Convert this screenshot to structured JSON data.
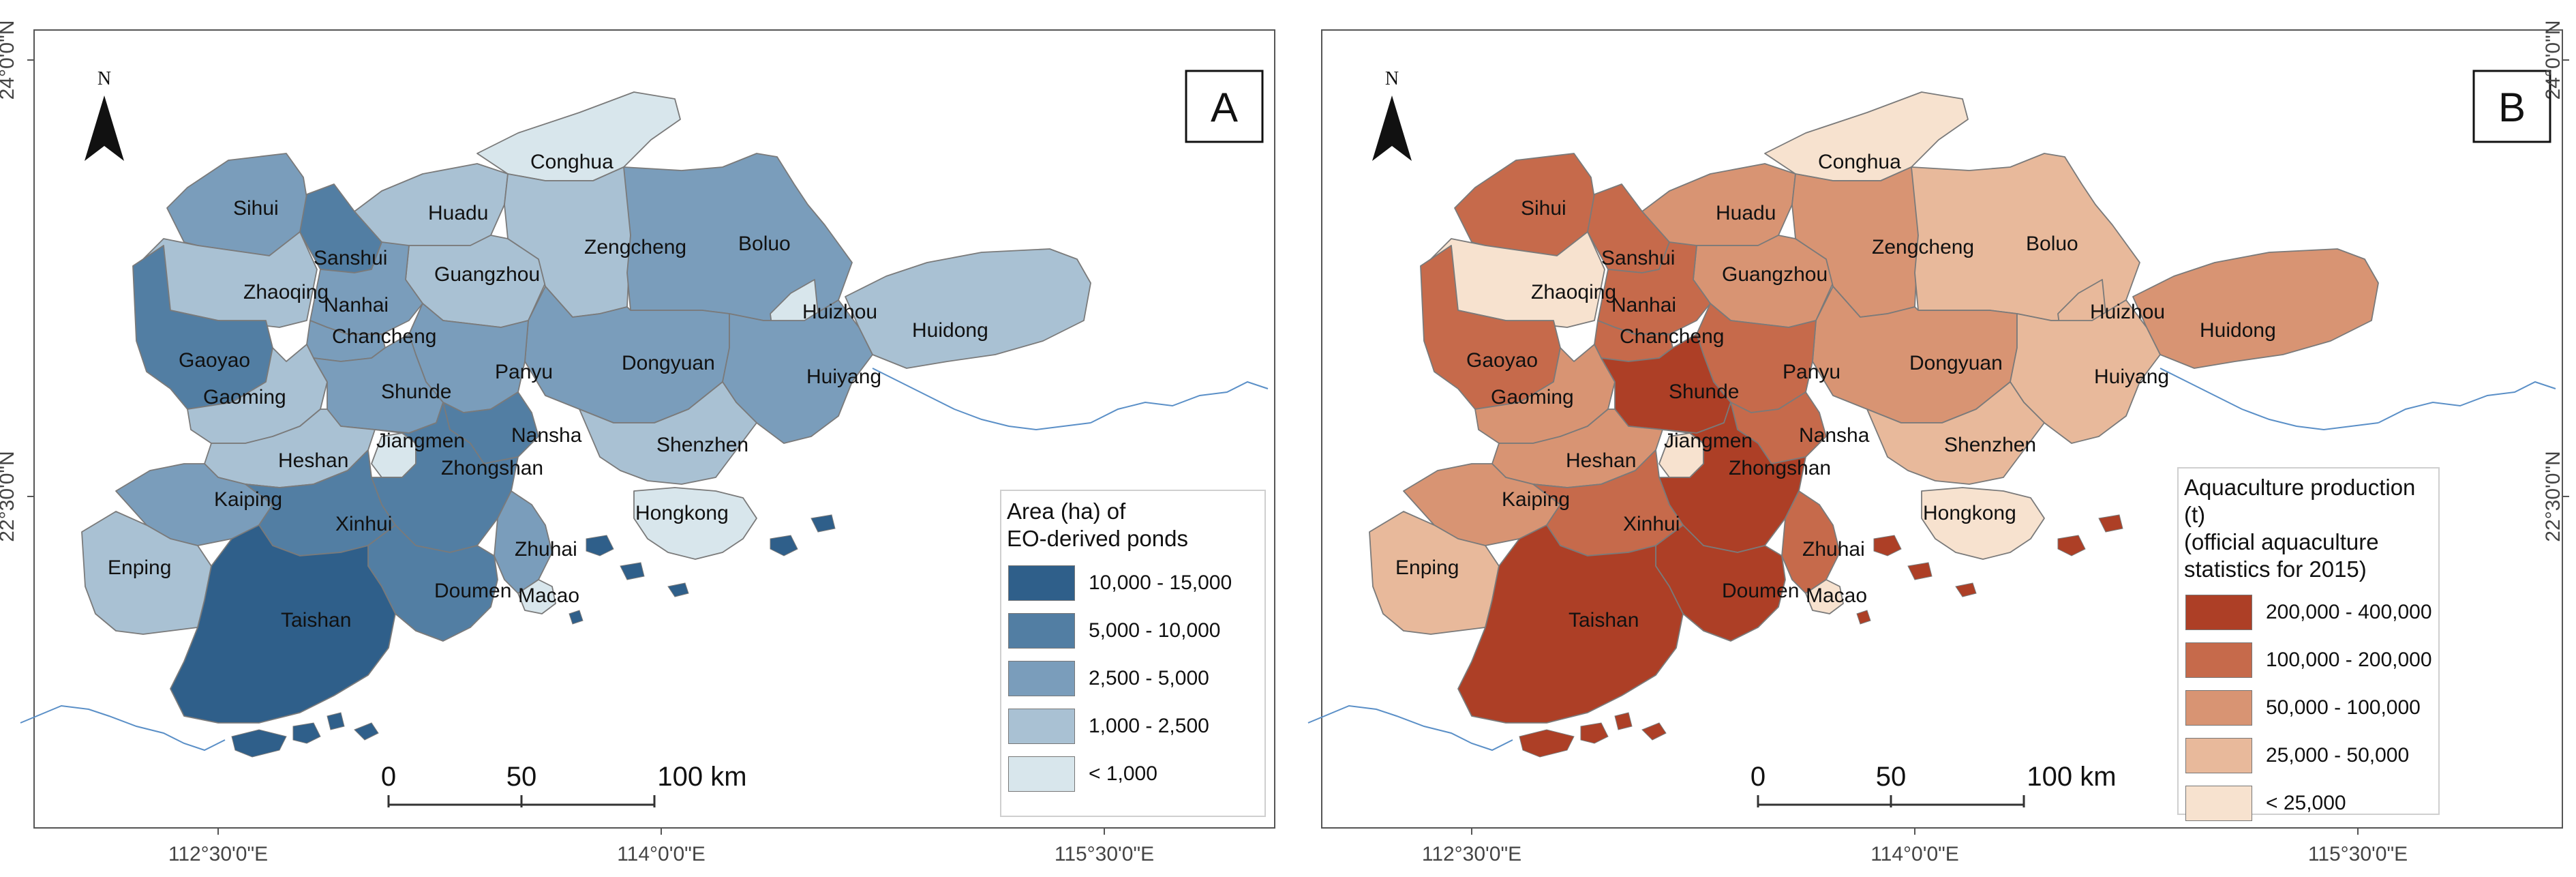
{
  "colors": {
    "blue_scale": [
      "#2f5f8a",
      "#527ea3",
      "#7a9dbb",
      "#a9c1d3",
      "#d8e6ec"
    ],
    "orange_scale": [
      "#ad3f26",
      "#c66a4b",
      "#d89473",
      "#e8b99b",
      "#f7e2cf"
    ],
    "coast": "#5a8fc7",
    "border": "#7a7a7a"
  },
  "axes": {
    "lon_ticks": [
      "112°30'0\"E",
      "114°0'0\"E",
      "115°30'0\"E"
    ],
    "lat_ticks": [
      "24°0'0\"N",
      "22°30'0\"N"
    ]
  },
  "panel_a": {
    "letter": "A",
    "north": "N",
    "legend_title": "Area (ha) of\nEO-derived ponds",
    "legend_items": [
      {
        "label": "10,000 - 15,000",
        "class": 0
      },
      {
        "label": "5,000 - 10,000",
        "class": 1
      },
      {
        "label": "2,500 - 5,000",
        "class": 2
      },
      {
        "label": "1,000 - 2,500",
        "class": 3
      },
      {
        "label": "< 1,000",
        "class": 4
      }
    ],
    "scale": [
      "0",
      "50",
      "100 km"
    ],
    "districts": {
      "Conghua": 4,
      "Sihui": 2,
      "Huadu": 3,
      "Sanshui": 1,
      "Guangzhou": 3,
      "Zengcheng": 3,
      "Boluo": 2,
      "Zhaoqing": 3,
      "Nanhai": 2,
      "Huizhou": 4,
      "Chancheng": 2,
      "Huidong": 3,
      "Gaoyao": 1,
      "Dongyuan": 2,
      "Panyu": 2,
      "Huiyang": 2,
      "Gaoming": 3,
      "Shunde": 2,
      "Jiangmen": 4,
      "Nansha": 1,
      "Shenzhen": 3,
      "Heshan": 3,
      "Zhongshan": 1,
      "Kaiping": 2,
      "Xinhui": 1,
      "Hongkong": 4,
      "Zhuhai": 2,
      "Enping": 3,
      "Doumen": 1,
      "Macao": 4,
      "Taishan": 0
    }
  },
  "panel_b": {
    "letter": "B",
    "north": "N",
    "legend_title": "Aquaculture production (t)\n(official aquaculture\nstatistics for 2015)",
    "legend_items": [
      {
        "label": "200,000 - 400,000",
        "class": 0
      },
      {
        "label": "100,000 - 200,000",
        "class": 1
      },
      {
        "label": "50,000 - 100,000",
        "class": 2
      },
      {
        "label": "25,000 - 50,000",
        "class": 3
      },
      {
        "label": "< 25,000",
        "class": 4
      }
    ],
    "scale": [
      "0",
      "50",
      "100 km"
    ],
    "districts": {
      "Conghua": 4,
      "Sihui": 1,
      "Huadu": 2,
      "Sanshui": 1,
      "Guangzhou": 2,
      "Zengcheng": 2,
      "Boluo": 3,
      "Zhaoqing": 4,
      "Nanhai": 1,
      "Huizhou": 3,
      "Chancheng": 1,
      "Huidong": 2,
      "Gaoyao": 1,
      "Dongyuan": 2,
      "Panyu": 1,
      "Huiyang": 3,
      "Gaoming": 2,
      "Shunde": 0,
      "Jiangmen": 4,
      "Nansha": 1,
      "Shenzhen": 3,
      "Heshan": 2,
      "Zhongshan": 0,
      "Kaiping": 2,
      "Xinhui": 1,
      "Hongkong": 4,
      "Zhuhai": 1,
      "Enping": 3,
      "Doumen": 0,
      "Macao": 4,
      "Taishan": 0
    }
  }
}
